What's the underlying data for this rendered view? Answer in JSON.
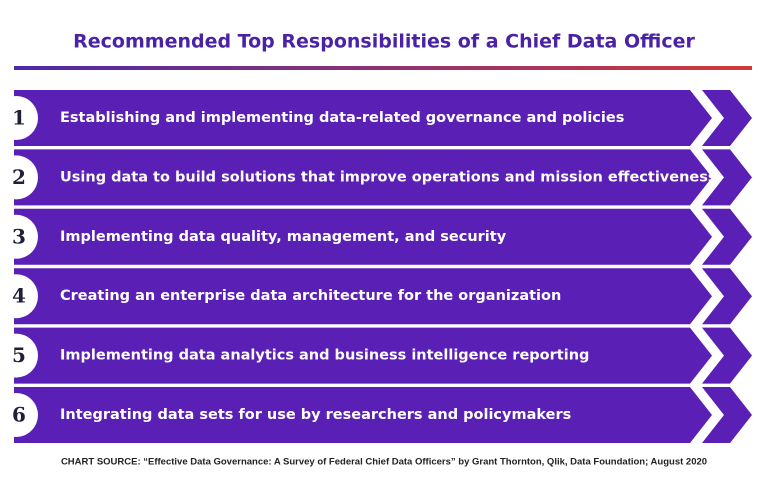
{
  "title": "Recommended Top Responsibilities of a Chief Data Officer",
  "items": [
    {
      "number": "1",
      "text": "Establishing and implementing data-related governance and policies"
    },
    {
      "number": "2",
      "text": "Using data to build solutions that improve  operations and mission effectiveness"
    },
    {
      "number": "3",
      "text": "Implementing data quality, management, and security"
    },
    {
      "number": "4",
      "text": "Creating an enterprise data architecture for  the organization"
    },
    {
      "number": "5",
      "text": "Implementing data analytics and business  intelligence reporting"
    },
    {
      "number": "6",
      "text": "Integrating data sets for use by researchers and policymakers"
    }
  ],
  "source": "CHART SOURCE: “Effective Data Governance: A Survey of Federal Chief Data Officers” by Grant Thornton, Qlik, Data Foundation; August 2020"
}
